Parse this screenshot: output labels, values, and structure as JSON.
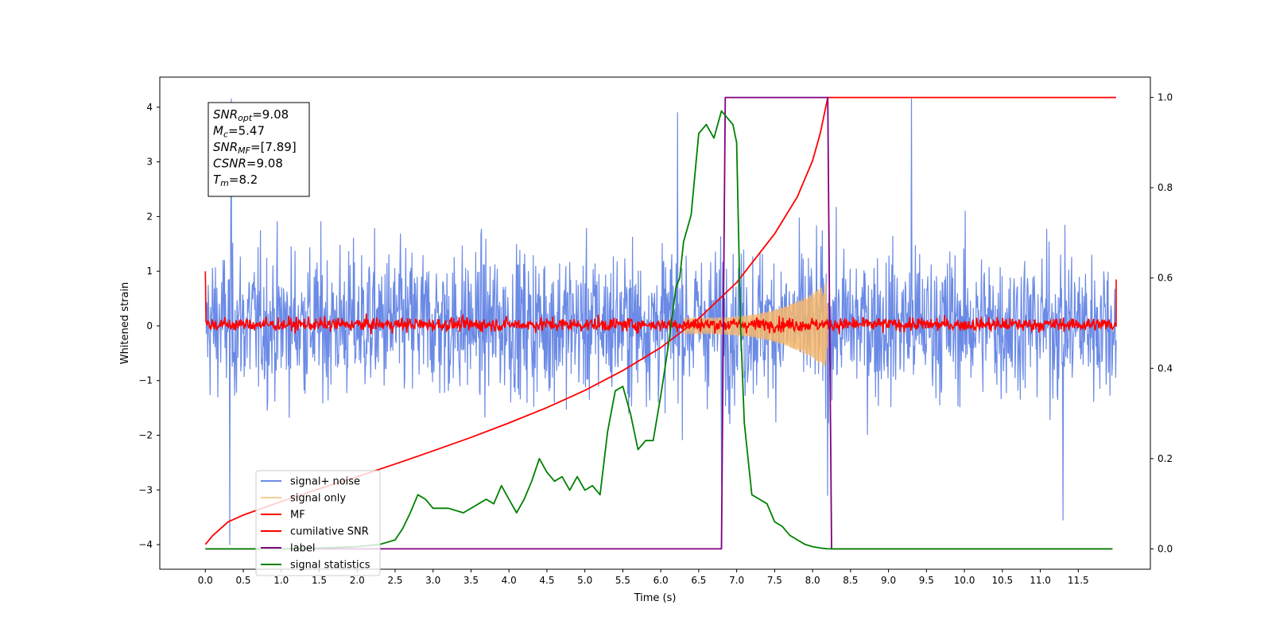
{
  "chart_data": {
    "type": "line",
    "xlabel": "Time (s)",
    "ylabel": "Whitened strain",
    "xlim": [
      -0.6,
      12.45
    ],
    "ylim": [
      -4.45,
      4.55
    ],
    "y2lim": [
      -0.045,
      1.045
    ],
    "xticks": [
      0.0,
      0.5,
      1.0,
      1.5,
      2.0,
      2.5,
      3.0,
      3.5,
      4.0,
      4.5,
      5.0,
      5.5,
      6.0,
      6.5,
      7.0,
      7.5,
      8.0,
      8.5,
      9.0,
      9.5,
      10.0,
      10.5,
      11.0,
      11.5
    ],
    "xtick_labels": [
      "0.0",
      "0.5",
      "1.0",
      "1.5",
      "2.0",
      "2.5",
      "3.0",
      "3.5",
      "4.0",
      "4.5",
      "5.0",
      "5.5",
      "6.0",
      "6.5",
      "7.0",
      "7.5",
      "8.0",
      "8.5",
      "9.0",
      "9.5",
      "10.0",
      "10.5",
      "11.0",
      "11.5"
    ],
    "yticks": [
      -4,
      -3,
      -2,
      -1,
      0,
      1,
      2,
      3,
      4
    ],
    "ytick_labels": [
      "−4",
      "−3",
      "−2",
      "−1",
      "0",
      "1",
      "2",
      "3",
      "4"
    ],
    "y2ticks": [
      0.0,
      0.2,
      0.4,
      0.6,
      0.8,
      1.0
    ],
    "y2tick_labels": [
      "0.0",
      "0.2",
      "0.4",
      "0.6",
      "0.8",
      "1.0"
    ],
    "grid": false,
    "legend_position": "bottom-left",
    "annotation": {
      "lines": [
        {
          "base": "SNR",
          "sub": "opt",
          "rest": "=9.08"
        },
        {
          "base": "M",
          "sub": "c",
          "rest": "=5.47"
        },
        {
          "base": "SNR",
          "sub": "MF",
          "rest": "=[7.89]"
        },
        {
          "base": "CSNR",
          "sub": "",
          "rest": "=9.08"
        },
        {
          "base": "T",
          "sub": "m",
          "rest": "=8.2"
        }
      ]
    },
    "series": [
      {
        "name": "signal+ noise",
        "axis": "left",
        "color": "#6a8ae6",
        "kind": "noise_band",
        "x_range": [
          0.0,
          12.0
        ],
        "typical_range": [
          -1.8,
          1.9
        ],
        "peak_max": 4.15,
        "peak_min": -4.0
      },
      {
        "name": "signal only",
        "axis": "left",
        "color": "#f5b66b",
        "kind": "chirp",
        "x_range": [
          6.3,
          8.2
        ],
        "envelope_start": 0.15,
        "envelope_end": 0.8
      },
      {
        "name": "MF",
        "axis": "left",
        "color": "#ff0000",
        "kind": "noise_band",
        "x_range": [
          0.0,
          12.0
        ],
        "typical_range": [
          -0.2,
          0.25
        ],
        "peak_max": 0.45,
        "peak_min": -0.25
      },
      {
        "name": "cumilative SNR",
        "axis": "right",
        "color": "#ff0000",
        "x": [
          0.0,
          0.1,
          0.3,
          0.5,
          1.0,
          1.5,
          2.0,
          2.5,
          3.0,
          3.5,
          4.0,
          4.5,
          5.0,
          5.5,
          6.0,
          6.5,
          7.0,
          7.5,
          7.8,
          8.0,
          8.1,
          8.2,
          12.0
        ],
        "y": [
          0.01,
          0.03,
          0.06,
          0.075,
          0.105,
          0.133,
          0.16,
          0.188,
          0.217,
          0.247,
          0.279,
          0.313,
          0.351,
          0.395,
          0.446,
          0.51,
          0.59,
          0.698,
          0.78,
          0.86,
          0.92,
          1.0,
          1.0
        ]
      },
      {
        "name": "label",
        "axis": "right",
        "color": "#800080",
        "x": [
          0.0,
          6.8,
          6.85,
          8.2,
          8.25,
          11.95
        ],
        "y": [
          0.0,
          0.0,
          1.0,
          1.0,
          0.0,
          0.0
        ]
      },
      {
        "name": "signal statistics",
        "axis": "right",
        "color": "#008000",
        "x": [
          0.0,
          0.5,
          1.0,
          1.5,
          2.0,
          2.3,
          2.5,
          2.6,
          2.7,
          2.8,
          2.9,
          3.0,
          3.2,
          3.4,
          3.6,
          3.7,
          3.8,
          3.9,
          4.0,
          4.1,
          4.2,
          4.3,
          4.4,
          4.5,
          4.6,
          4.7,
          4.8,
          4.9,
          5.0,
          5.1,
          5.2,
          5.3,
          5.4,
          5.5,
          5.6,
          5.7,
          5.8,
          5.9,
          6.0,
          6.1,
          6.2,
          6.25,
          6.3,
          6.4,
          6.5,
          6.6,
          6.7,
          6.8,
          6.9,
          6.95,
          7.0,
          7.05,
          7.1,
          7.2,
          7.3,
          7.4,
          7.5,
          7.6,
          7.7,
          7.8,
          7.9,
          8.0,
          8.1,
          8.2,
          9.0,
          10.0,
          11.0,
          11.95
        ],
        "y": [
          0.0,
          0.0,
          0.0,
          0.002,
          0.005,
          0.01,
          0.02,
          0.045,
          0.08,
          0.12,
          0.11,
          0.09,
          0.09,
          0.08,
          0.1,
          0.11,
          0.1,
          0.14,
          0.11,
          0.08,
          0.11,
          0.15,
          0.2,
          0.17,
          0.15,
          0.16,
          0.13,
          0.16,
          0.13,
          0.14,
          0.12,
          0.26,
          0.35,
          0.36,
          0.3,
          0.22,
          0.24,
          0.24,
          0.34,
          0.45,
          0.58,
          0.6,
          0.68,
          0.74,
          0.92,
          0.94,
          0.91,
          0.97,
          0.95,
          0.94,
          0.9,
          0.5,
          0.28,
          0.12,
          0.11,
          0.1,
          0.06,
          0.05,
          0.03,
          0.02,
          0.01,
          0.005,
          0.002,
          0.0,
          0.0,
          0.0,
          0.0,
          0.0
        ]
      }
    ]
  }
}
